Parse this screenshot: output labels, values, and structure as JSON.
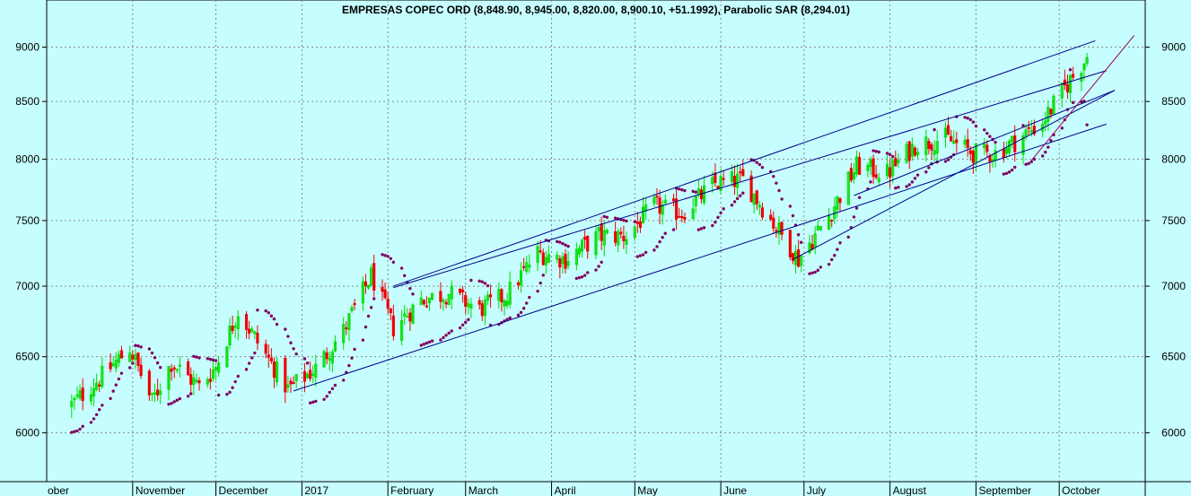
{
  "chart_data": {
    "type": "candlestick",
    "title": "EMPRESAS COPEC ORD (8,848.90, 8,945.00, 8,820.00, 8,900.10, +51.1992), Parabolic SAR (8,294.01)",
    "x_labels": [
      "ober",
      "November",
      "December",
      "2017",
      "February",
      "March",
      "April",
      "May",
      "June",
      "July",
      "August",
      "September",
      "October"
    ],
    "y_ticks": [
      6000,
      6500,
      7000,
      7500,
      8000,
      8500,
      9000
    ],
    "ylim": [
      5700,
      9280
    ],
    "y_scale": "log",
    "grid": true,
    "x_axis": "months from October 2016 to October 2017, daily candles",
    "colors": {
      "background": "#c6feff",
      "up_candle": "#00dd00",
      "down_candle": "#ee0000",
      "sar_dots": "#800060",
      "channel_lines": "#00008b",
      "trend_line": "#990055",
      "grid": "#888888"
    },
    "last_candle": {
      "open": 8848.9,
      "high": 8945.0,
      "low": 8820.0,
      "close": 8900.1,
      "change": 51.1992
    },
    "parabolic_sar": 8294.01,
    "approx_closes": [
      [
        "2016-10-10",
        6180
      ],
      [
        "2016-10-20",
        6350
      ],
      [
        "2016-10-31",
        6560
      ],
      [
        "2016-11-08",
        6200
      ],
      [
        "2016-11-15",
        6460
      ],
      [
        "2016-11-25",
        6300
      ],
      [
        "2016-12-01",
        6430
      ],
      [
        "2016-12-09",
        6820
      ],
      [
        "2016-12-16",
        6600
      ],
      [
        "2016-12-27",
        6280
      ],
      [
        "2017-01-06",
        6420
      ],
      [
        "2017-01-16",
        6680
      ],
      [
        "2017-01-26",
        7080
      ],
      [
        "2017-02-03",
        6700
      ],
      [
        "2017-02-13",
        6900
      ],
      [
        "2017-02-23",
        6950
      ],
      [
        "2017-03-06",
        6830
      ],
      [
        "2017-03-16",
        6940
      ],
      [
        "2017-03-27",
        7250
      ],
      [
        "2017-04-06",
        7200
      ],
      [
        "2017-04-18",
        7380
      ],
      [
        "2017-04-28",
        7380
      ],
      [
        "2017-05-08",
        7620
      ],
      [
        "2017-05-18",
        7560
      ],
      [
        "2017-05-30",
        7800
      ],
      [
        "2017-06-09",
        7830
      ],
      [
        "2017-06-20",
        7480
      ],
      [
        "2017-06-29",
        7200
      ],
      [
        "2017-07-10",
        7540
      ],
      [
        "2017-07-20",
        7940
      ],
      [
        "2017-07-31",
        7880
      ],
      [
        "2017-08-10",
        8120
      ],
      [
        "2017-08-21",
        8180
      ],
      [
        "2017-08-31",
        8050
      ],
      [
        "2017-09-08",
        8050
      ],
      [
        "2017-09-15",
        8150
      ],
      [
        "2017-09-25",
        8320
      ],
      [
        "2017-10-04",
        8660
      ],
      [
        "2017-10-11",
        8900
      ]
    ]
  }
}
